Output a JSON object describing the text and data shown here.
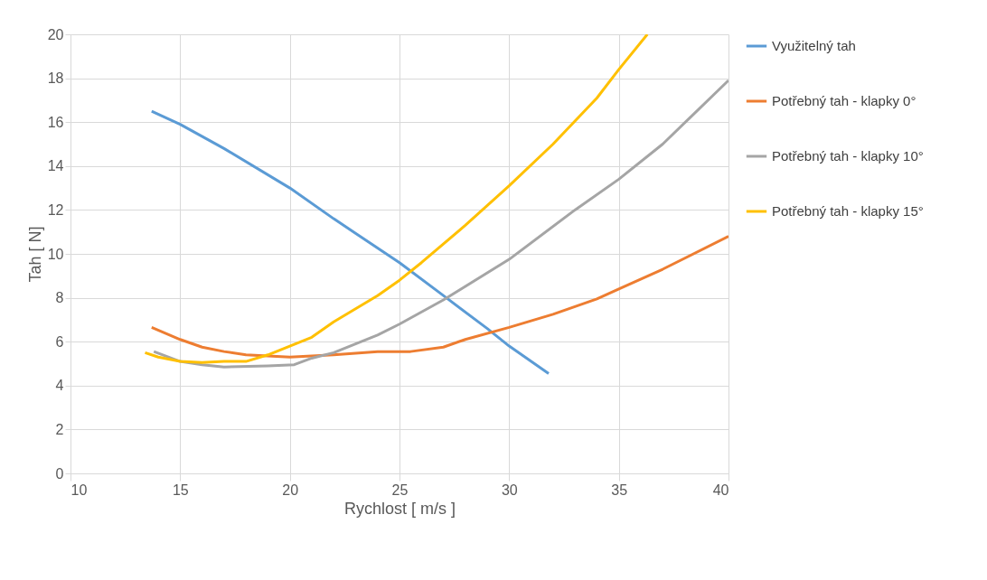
{
  "chart_data": {
    "type": "line",
    "xlabel": "Rychlost [ m/s ]",
    "ylabel": "Tah [ N]",
    "xlim": [
      10,
      40
    ],
    "xticks": [
      10,
      15,
      20,
      25,
      30,
      35,
      40
    ],
    "ylim": [
      0,
      20
    ],
    "yticks": [
      0,
      2,
      4,
      6,
      8,
      10,
      12,
      14,
      16,
      18,
      20
    ],
    "grid": true,
    "legend": "right",
    "marker": "none",
    "line_style": "solid",
    "series": [
      {
        "name": "Využitelný tah",
        "color": "#5b9bd5",
        "x": [
          13.7,
          15,
          17,
          20,
          22,
          25,
          27,
          29,
          30,
          31.8
        ],
        "values": [
          16.5,
          15.9,
          14.8,
          13.0,
          11.6,
          9.6,
          8.1,
          6.6,
          5.8,
          4.55
        ]
      },
      {
        "name": "Potřebný tah - klapky 0°",
        "color": "#ed7d31",
        "x": [
          13.7,
          15,
          16,
          17,
          18,
          19,
          20,
          22,
          24,
          25.5,
          27,
          28,
          30,
          32,
          34,
          35,
          37,
          40
        ],
        "values": [
          6.65,
          6.1,
          5.75,
          5.55,
          5.4,
          5.35,
          5.3,
          5.4,
          5.55,
          5.55,
          5.75,
          6.1,
          6.65,
          7.25,
          7.95,
          8.4,
          9.3,
          10.8
        ]
      },
      {
        "name": "Potřebný tah - klapky 10°",
        "color": "#a5a5a5",
        "x": [
          13.8,
          15,
          16,
          17,
          19,
          20.2,
          21,
          22,
          24,
          25,
          27,
          30,
          33,
          35,
          37,
          40
        ],
        "values": [
          5.55,
          5.1,
          4.95,
          4.85,
          4.9,
          4.95,
          5.25,
          5.5,
          6.3,
          6.8,
          7.9,
          9.75,
          12.0,
          13.4,
          15.0,
          17.9
        ]
      },
      {
        "name": "Potřebný tah - klapky 15°",
        "color": "#ffc000",
        "x": [
          13.4,
          14,
          15,
          16,
          17,
          18,
          19,
          20,
          21,
          22,
          24,
          25,
          26,
          28,
          30,
          32,
          34,
          35,
          36.3
        ],
        "values": [
          5.5,
          5.3,
          5.1,
          5.05,
          5.1,
          5.1,
          5.4,
          5.8,
          6.2,
          6.9,
          8.1,
          8.8,
          9.6,
          11.3,
          13.1,
          15.0,
          17.1,
          18.4,
          20
        ]
      }
    ]
  }
}
